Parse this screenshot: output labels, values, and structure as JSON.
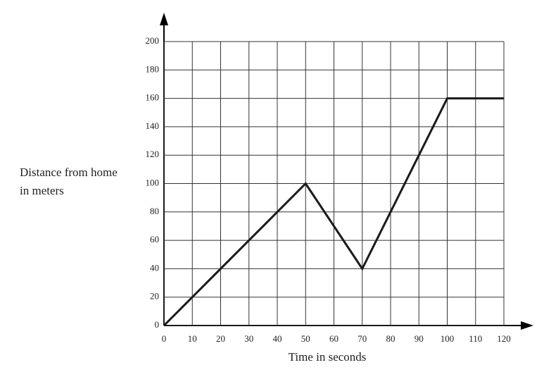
{
  "chart_data": {
    "type": "line",
    "xlabel": "Time in seconds",
    "ylabel": "Distance from home in meters",
    "x": [
      0,
      50,
      70,
      100,
      120
    ],
    "series": [
      {
        "color": "#1a1a1a",
        "values": [
          0,
          100,
          40,
          160,
          160
        ]
      }
    ],
    "xlim": [
      0,
      120
    ],
    "xticks": [
      0,
      10,
      20,
      30,
      40,
      50,
      60,
      70,
      80,
      90,
      100,
      110,
      120
    ],
    "ylim": [
      0,
      200
    ],
    "yticks": [
      0,
      20,
      40,
      60,
      80,
      100,
      120,
      140,
      160,
      180,
      200
    ],
    "grid": true
  }
}
